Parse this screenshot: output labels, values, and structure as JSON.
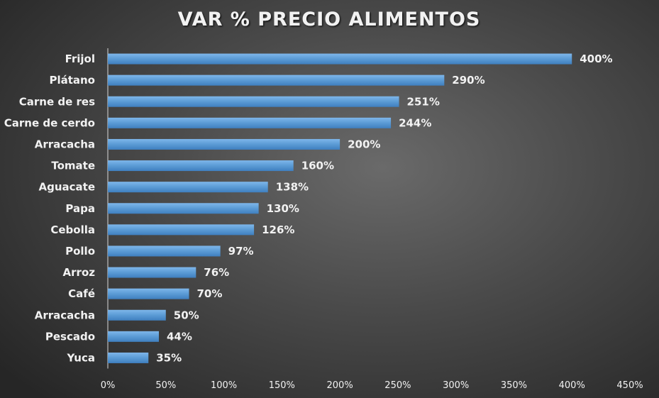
{
  "chart_data": {
    "type": "bar",
    "orientation": "horizontal",
    "title": "VAR % PRECIO ALIMENTOS",
    "categories": [
      "Frijol",
      "Plátano",
      "Carne de res",
      "Carne de cerdo",
      "Arracacha",
      "Tomate",
      "Aguacate",
      "Papa",
      "Cebolla",
      "Pollo",
      "Arroz",
      "Café",
      "Arracacha",
      "Pescado",
      "Yuca"
    ],
    "values": [
      400,
      290,
      251,
      244,
      200,
      160,
      138,
      130,
      126,
      97,
      76,
      70,
      50,
      44,
      35
    ],
    "value_labels": [
      "400%",
      "290%",
      "251%",
      "244%",
      "200%",
      "160%",
      "138%",
      "130%",
      "126%",
      "97%",
      "76%",
      "70%",
      "50%",
      "44%",
      "35%"
    ],
    "xlim": [
      0,
      450
    ],
    "x_ticks": [
      0,
      50,
      100,
      150,
      200,
      250,
      300,
      350,
      400,
      450
    ],
    "x_tick_labels": [
      "0%",
      "50%",
      "100%",
      "150%",
      "200%",
      "250%",
      "300%",
      "350%",
      "400%",
      "450%"
    ],
    "xlabel": "",
    "ylabel": "",
    "grid": false,
    "legend": "none",
    "bar_color": "#5b9bd5",
    "background_color": "#404040"
  }
}
